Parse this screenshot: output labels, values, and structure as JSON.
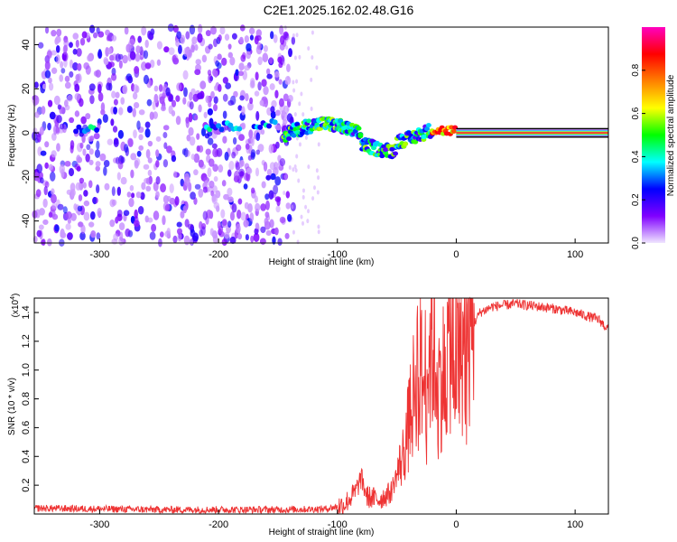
{
  "title": "C2E1.2025.162.02.48.G16",
  "chart_data": [
    {
      "type": "heatmap",
      "xlabel": "Height of straight line (km)",
      "ylabel": "Frequency (Hz)",
      "xlim": [
        -355,
        128
      ],
      "ylim": [
        -50,
        48
      ],
      "x_ticks": [
        -300,
        -200,
        -100,
        0,
        100
      ],
      "y_ticks": [
        -40,
        -20,
        0,
        20,
        40
      ],
      "x_tick_labels": [
        "-300",
        "-200",
        "-100",
        "0",
        "100"
      ],
      "y_tick_labels": [
        "-40",
        "-20",
        "0",
        "20",
        "40"
      ],
      "colorbar": {
        "label": "Normalized spectral amplitude",
        "range": [
          0,
          1
        ],
        "ticks": [
          0.0,
          0.2,
          0.4,
          0.6,
          0.8
        ],
        "tick_labels": [
          "0.0",
          "0.2",
          "0.4",
          "0.6",
          "0.8"
        ],
        "colors": [
          "#f0e6ff",
          "#8000ff",
          "#0000ff",
          "#00ffff",
          "#00ff00",
          "#ffff00",
          "#ff8000",
          "#ff0000",
          "#ff00c0"
        ]
      },
      "regions": [
        {
          "x": [
            -355,
            -145
          ],
          "freq_center": 0,
          "amplitude": 0.15,
          "note_style": "scattered noise"
        },
        {
          "x": [
            -145,
            -20
          ],
          "freq_center": 2,
          "amplitude": 0.45
        },
        {
          "x": [
            -20,
            0
          ],
          "freq_center": 1,
          "amplitude": 0.8
        },
        {
          "x": [
            0,
            128
          ],
          "freq_center": 0,
          "amplitude": 0.92
        }
      ],
      "grid": false
    },
    {
      "type": "line",
      "xlabel": "Height of straight line (km)",
      "ylabel": "SNR (10 * v/v)",
      "multiplier_label": "(x10",
      "multiplier_exp": "4",
      "xlim": [
        -355,
        128
      ],
      "ylim": [
        0,
        1.5
      ],
      "x_ticks": [
        -300,
        -200,
        -100,
        0,
        100
      ],
      "y_ticks": [
        0.2,
        0.4,
        0.6,
        0.8,
        1.0,
        1.2,
        1.4
      ],
      "x_tick_labels": [
        "-300",
        "-200",
        "-100",
        "0",
        "100"
      ],
      "y_tick_labels": [
        "0.2",
        "0.4",
        "0.6",
        "0.8",
        "1.0",
        "1.2",
        "1.4"
      ],
      "series_color": "#ee3333",
      "profile": [
        [
          -355,
          0.04
        ],
        [
          -300,
          0.035
        ],
        [
          -250,
          0.03
        ],
        [
          -200,
          0.03
        ],
        [
          -150,
          0.03
        ],
        [
          -110,
          0.035
        ],
        [
          -95,
          0.06
        ],
        [
          -85,
          0.15
        ],
        [
          -80,
          0.25
        ],
        [
          -75,
          0.12
        ],
        [
          -65,
          0.1
        ],
        [
          -55,
          0.15
        ],
        [
          -45,
          0.4
        ],
        [
          -38,
          0.7
        ],
        [
          -32,
          1.1
        ],
        [
          -28,
          0.9
        ],
        [
          -20,
          1.2
        ],
        [
          -15,
          0.9
        ],
        [
          -10,
          1.0
        ],
        [
          -5,
          1.2
        ],
        [
          0,
          1.05
        ],
        [
          10,
          1.25
        ],
        [
          20,
          1.4
        ],
        [
          30,
          1.44
        ],
        [
          50,
          1.46
        ],
        [
          80,
          1.43
        ],
        [
          100,
          1.4
        ],
        [
          120,
          1.35
        ],
        [
          128,
          1.28
        ]
      ],
      "grid": false
    }
  ]
}
